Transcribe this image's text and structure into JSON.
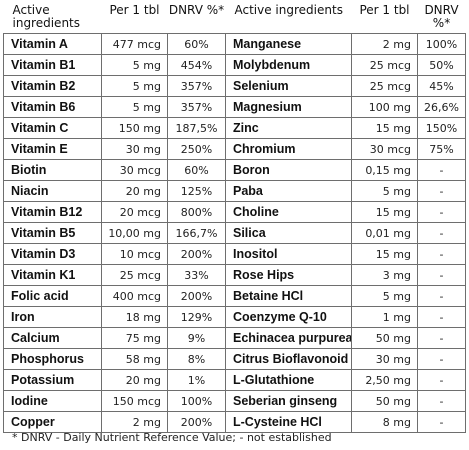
{
  "header": {
    "col1_name": "Active ingredients",
    "col1_per": "Per 1 tbl",
    "col1_dnrv": "DNRV %*",
    "col2_name": "Active ingredients",
    "col2_per": "Per 1 tbl",
    "col2_dnrv": "DNRV %*"
  },
  "rows": [
    {
      "left": {
        "name": "Vitamin A",
        "amount": "477 mcg",
        "dnrv": "60%"
      },
      "right": {
        "name": "Manganese",
        "amount": "2 mg",
        "dnrv": "100%"
      }
    },
    {
      "left": {
        "name": "Vitamin B1",
        "amount": "5 mg",
        "dnrv": "454%"
      },
      "right": {
        "name": "Molybdenum",
        "amount": "25 mcg",
        "dnrv": "50%"
      }
    },
    {
      "left": {
        "name": "Vitamin B2",
        "amount": "5 mg",
        "dnrv": "357%"
      },
      "right": {
        "name": "Selenium",
        "amount": "25 mcg",
        "dnrv": "45%"
      }
    },
    {
      "left": {
        "name": "Vitamin B6",
        "amount": "5 mg",
        "dnrv": "357%"
      },
      "right": {
        "name": "Magnesium",
        "amount": "100 mg",
        "dnrv": "26,6%"
      }
    },
    {
      "left": {
        "name": "Vitamin C",
        "amount": "150 mg",
        "dnrv": "187,5%"
      },
      "right": {
        "name": "Zinc",
        "amount": "15 mg",
        "dnrv": "150%"
      }
    },
    {
      "left": {
        "name": "Vitamin E",
        "amount": "30 mg",
        "dnrv": "250%"
      },
      "right": {
        "name": "Chromium",
        "amount": "30 mcg",
        "dnrv": "75%"
      }
    },
    {
      "left": {
        "name": "Biotin",
        "amount": "30 mcg",
        "dnrv": "60%"
      },
      "right": {
        "name": "Boron",
        "amount": "0,15 mg",
        "dnrv": "-"
      }
    },
    {
      "left": {
        "name": "Niacin",
        "amount": "20 mg",
        "dnrv": "125%"
      },
      "right": {
        "name": "Paba",
        "amount": "5 mg",
        "dnrv": "-"
      }
    },
    {
      "left": {
        "name": "Vitamin B12",
        "amount": "20 mcg",
        "dnrv": "800%"
      },
      "right": {
        "name": "Choline",
        "amount": "15 mg",
        "dnrv": "-"
      }
    },
    {
      "left": {
        "name": "Vitamin B5",
        "amount": "10,00 mg",
        "dnrv": "166,7%"
      },
      "right": {
        "name": "Silica",
        "amount": "0,01 mg",
        "dnrv": "-"
      }
    },
    {
      "left": {
        "name": "Vitamin D3",
        "amount": "10 mcg",
        "dnrv": "200%"
      },
      "right": {
        "name": "Inositol",
        "amount": "15 mg",
        "dnrv": "-"
      }
    },
    {
      "left": {
        "name": "Vitamin K1",
        "amount": "25 mcg",
        "dnrv": "33%"
      },
      "right": {
        "name": "Rose Hips",
        "amount": "3 mg",
        "dnrv": "-"
      }
    },
    {
      "left": {
        "name": "Folic acid",
        "amount": "400 mcg",
        "dnrv": "200%"
      },
      "right": {
        "name": "Betaine HCl",
        "amount": "5 mg",
        "dnrv": "-"
      }
    },
    {
      "left": {
        "name": "Iron",
        "amount": "18 mg",
        "dnrv": "129%"
      },
      "right": {
        "name": "Coenzyme Q-10",
        "amount": "1 mg",
        "dnrv": "-"
      }
    },
    {
      "left": {
        "name": "Calcium",
        "amount": "75 mg",
        "dnrv": "9%"
      },
      "right": {
        "name": "Echinacea purpurea",
        "amount": "50 mg",
        "dnrv": "-"
      }
    },
    {
      "left": {
        "name": "Phosphorus",
        "amount": "58 mg",
        "dnrv": "8%"
      },
      "right": {
        "name": "Citrus Bioflavonoid",
        "amount": "30 mg",
        "dnrv": "-"
      }
    },
    {
      "left": {
        "name": "Potassium",
        "amount": "20 mg",
        "dnrv": "1%"
      },
      "right": {
        "name": "L-Glutathione",
        "amount": "2,50 mg",
        "dnrv": "-"
      }
    },
    {
      "left": {
        "name": "Iodine",
        "amount": "150 mcg",
        "dnrv": "100%"
      },
      "right": {
        "name": "Seberian ginseng",
        "amount": "50 mg",
        "dnrv": "-"
      }
    },
    {
      "left": {
        "name": "Copper",
        "amount": "2 mg",
        "dnrv": "200%"
      },
      "right": {
        "name": "L-Cysteine HCl",
        "amount": "8 mg",
        "dnrv": "-"
      }
    }
  ],
  "footnote": "* DNRV - Daily Nutrient Reference Value; - not established"
}
